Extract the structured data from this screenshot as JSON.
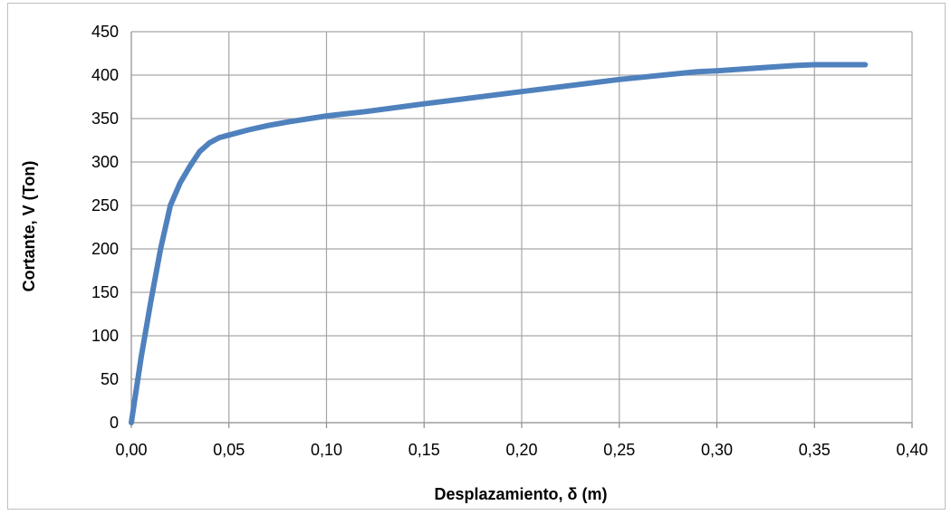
{
  "chart_data": {
    "type": "line",
    "title": "",
    "xlabel": "Desplazamiento, δ (m)",
    "ylabel": "Cortante, V (Ton)",
    "xlim": [
      0,
      0.4
    ],
    "ylim": [
      0,
      450
    ],
    "x_ticks": [
      "0,00",
      "0,05",
      "0,10",
      "0,15",
      "0,20",
      "0,25",
      "0,30",
      "0,35",
      "0,40"
    ],
    "y_ticks": [
      "0",
      "50",
      "100",
      "150",
      "200",
      "250",
      "300",
      "350",
      "400",
      "450"
    ],
    "grid": true,
    "legend": "none",
    "line_color": "#4f81bd",
    "series": [
      {
        "x": [
          0.0,
          0.002,
          0.005,
          0.01,
          0.015,
          0.02,
          0.025,
          0.03,
          0.035,
          0.04,
          0.045,
          0.05,
          0.06,
          0.07,
          0.08,
          0.1,
          0.12,
          0.15,
          0.2,
          0.25,
          0.29,
          0.3,
          0.32,
          0.34,
          0.35,
          0.376
        ],
        "y": [
          0,
          30,
          75,
          140,
          200,
          250,
          276,
          295,
          312,
          322,
          328,
          331,
          337,
          342,
          346,
          353,
          358,
          367,
          381,
          395,
          404,
          405,
          408,
          411,
          412,
          412
        ]
      }
    ]
  }
}
